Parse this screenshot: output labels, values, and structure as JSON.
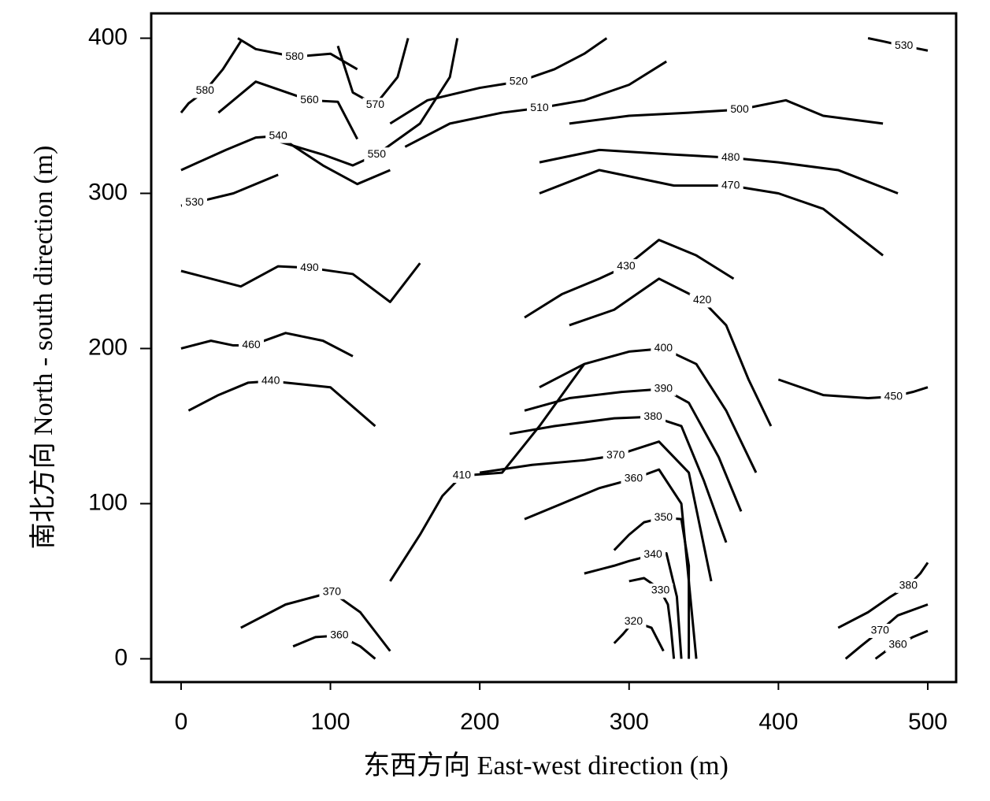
{
  "chart_data": {
    "type": "contour",
    "x_label": "东西方向 East-west direction (m)",
    "y_label": "南北方向 North - south direction (m)",
    "xlim": [
      -20,
      519
    ],
    "ylim": [
      -15,
      416
    ],
    "xticks": [
      0,
      100,
      200,
      300,
      400,
      500
    ],
    "yticks": [
      0,
      100,
      200,
      300,
      400
    ],
    "color": "#000000",
    "contours": [
      {
        "level": 580,
        "x": [
          38,
          50,
          76,
          100,
          118
        ],
        "y": [
          400,
          393,
          388,
          390,
          380
        ]
      },
      {
        "level": 580,
        "x": [
          0,
          5,
          16,
          28,
          40
        ],
        "y": [
          352,
          358,
          366,
          380,
          398
        ]
      },
      {
        "level": 560,
        "x": [
          25,
          50,
          86,
          105,
          118
        ],
        "y": [
          352,
          372,
          360,
          359,
          335
        ]
      },
      {
        "level": 570,
        "x": [
          105,
          115,
          130,
          145,
          152
        ],
        "y": [
          395,
          365,
          357,
          375,
          400
        ]
      },
      {
        "level": 540,
        "x": [
          0,
          30,
          50,
          65,
          95,
          118,
          140
        ],
        "y": [
          315,
          328,
          336,
          337,
          318,
          306,
          315
        ]
      },
      {
        "level": 550,
        "x": [
          60,
          95,
          115,
          131,
          160,
          180,
          185
        ],
        "y": [
          335,
          325,
          318,
          325,
          345,
          375,
          400
        ]
      },
      {
        "level": 530,
        "x": [
          0,
          4,
          9,
          35,
          65
        ],
        "y": [
          292,
          293,
          294,
          300,
          312
        ]
      },
      {
        "level": 490,
        "x": [
          0,
          40,
          65,
          86,
          115,
          140,
          160
        ],
        "y": [
          250,
          240,
          253,
          252,
          248,
          230,
          255
        ]
      },
      {
        "level": 460,
        "x": [
          0,
          20,
          35,
          47,
          70,
          95,
          115
        ],
        "y": [
          200,
          205,
          202,
          202,
          210,
          205,
          195
        ]
      },
      {
        "level": 440,
        "x": [
          5,
          25,
          45,
          60,
          80,
          100,
          130
        ],
        "y": [
          160,
          170,
          178,
          179,
          177,
          175,
          150
        ]
      },
      {
        "level": 520,
        "x": [
          140,
          165,
          200,
          226,
          250,
          270,
          285
        ],
        "y": [
          345,
          360,
          368,
          372,
          380,
          390,
          400
        ]
      },
      {
        "level": 510,
        "x": [
          150,
          180,
          215,
          240,
          270,
          300,
          325
        ],
        "y": [
          330,
          345,
          352,
          355,
          360,
          370,
          385
        ]
      },
      {
        "level": 500,
        "x": [
          260,
          300,
          340,
          374,
          405,
          430,
          470
        ],
        "y": [
          345,
          350,
          352,
          354,
          360,
          350,
          345
        ]
      },
      {
        "level": 480,
        "x": [
          240,
          280,
          330,
          368,
          400,
          440,
          480
        ],
        "y": [
          320,
          328,
          325,
          323,
          320,
          315,
          300
        ]
      },
      {
        "level": 470,
        "x": [
          240,
          280,
          330,
          368,
          400,
          430,
          470
        ],
        "y": [
          300,
          315,
          305,
          305,
          300,
          290,
          260
        ]
      },
      {
        "level": 430,
        "x": [
          230,
          255,
          280,
          298,
          320,
          345,
          370
        ],
        "y": [
          220,
          235,
          245,
          253,
          270,
          260,
          245
        ]
      },
      {
        "level": 420,
        "x": [
          260,
          290,
          320,
          349,
          365,
          380,
          395
        ],
        "y": [
          215,
          225,
          245,
          231,
          215,
          180,
          150
        ]
      },
      {
        "level": 400,
        "x": [
          240,
          270,
          300,
          323,
          345,
          365,
          385
        ],
        "y": [
          175,
          190,
          198,
          200,
          190,
          160,
          120
        ]
      },
      {
        "level": 390,
        "x": [
          230,
          260,
          295,
          323,
          340,
          360,
          375
        ],
        "y": [
          160,
          168,
          172,
          174,
          165,
          130,
          95
        ]
      },
      {
        "level": 380,
        "x": [
          220,
          250,
          290,
          316,
          335,
          350,
          365
        ],
        "y": [
          145,
          150,
          155,
          156,
          150,
          115,
          75
        ]
      },
      {
        "level": 370,
        "x": [
          200,
          235,
          270,
          291,
          320,
          340,
          355
        ],
        "y": [
          120,
          125,
          128,
          131,
          140,
          120,
          50
        ]
      },
      {
        "level": 360,
        "x": [
          230,
          255,
          280,
          303,
          320,
          335,
          345
        ],
        "y": [
          90,
          100,
          110,
          116,
          122,
          100,
          0
        ]
      },
      {
        "level": 410,
        "x": [
          140,
          160,
          175,
          188,
          215,
          240,
          270
        ],
        "y": [
          50,
          80,
          105,
          118,
          120,
          150,
          190
        ]
      },
      {
        "level": 350,
        "x": [
          290,
          300,
          310,
          323,
          335,
          340,
          340
        ],
        "y": [
          70,
          80,
          88,
          91,
          90,
          60,
          0
        ]
      },
      {
        "level": 340,
        "x": [
          270,
          290,
          300,
          316,
          325,
          332,
          335
        ],
        "y": [
          55,
          60,
          63,
          67,
          68,
          40,
          0
        ]
      },
      {
        "level": 330,
        "x": [
          300,
          310,
          316,
          321,
          326,
          328,
          330
        ],
        "y": [
          50,
          52,
          48,
          44,
          35,
          20,
          0
        ]
      },
      {
        "level": 320,
        "x": [
          290,
          296,
          303,
          315,
          323
        ],
        "y": [
          10,
          16,
          24,
          20,
          5
        ]
      },
      {
        "level": 370,
        "x": [
          40,
          70,
          101,
          120,
          140
        ],
        "y": [
          20,
          35,
          43,
          30,
          5
        ]
      },
      {
        "level": 360,
        "x": [
          75,
          90,
          106,
          120,
          130
        ],
        "y": [
          8,
          14,
          15,
          8,
          0
        ]
      },
      {
        "level": 530,
        "x": [
          460,
          470,
          484,
          495,
          500
        ],
        "y": [
          400,
          398,
          395,
          393,
          392
        ]
      },
      {
        "level": 450,
        "x": [
          400,
          430,
          460,
          477,
          490,
          500
        ],
        "y": [
          180,
          170,
          168,
          169,
          172,
          175
        ]
      },
      {
        "level": 380,
        "x": [
          440,
          460,
          475,
          487,
          495,
          500
        ],
        "y": [
          20,
          30,
          40,
          47,
          55,
          62
        ]
      },
      {
        "level": 370,
        "x": [
          445,
          455,
          468,
          480,
          500
        ],
        "y": [
          0,
          8,
          18,
          28,
          35
        ]
      },
      {
        "level": 360,
        "x": [
          465,
          472,
          480,
          490,
          500
        ],
        "y": [
          0,
          5,
          9,
          14,
          18
        ]
      }
    ]
  }
}
